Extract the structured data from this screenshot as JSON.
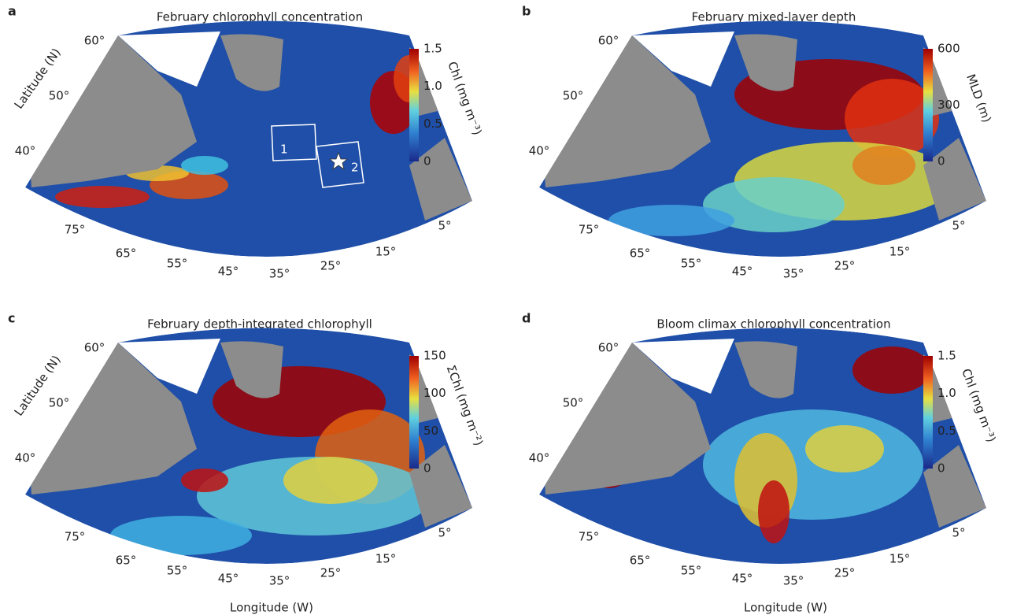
{
  "panels": [
    {
      "letter": "a",
      "title": "February chlorophyll concentration",
      "colorbar": {
        "label": "Chl (mg m⁻³)",
        "ticks": [
          "1.5",
          "1.0",
          "0.5",
          "0"
        ]
      },
      "lat_labels": [
        "60°",
        "50°",
        "40°"
      ],
      "lon_labels": [
        "75°",
        "65°",
        "55°",
        "45°",
        "35°",
        "25°",
        "15°",
        "5°"
      ],
      "y_label": "Latitude (N)",
      "box_labels": [
        "1",
        "2"
      ]
    },
    {
      "letter": "b",
      "title": "February mixed-layer depth",
      "colorbar": {
        "label": "MLD (m)",
        "ticks": [
          "600",
          "300",
          "0"
        ]
      },
      "lat_labels": [
        "60°",
        "50°",
        "40°"
      ],
      "lon_labels": [
        "75°",
        "65°",
        "55°",
        "45°",
        "35°",
        "25°",
        "15°",
        "5°"
      ]
    },
    {
      "letter": "c",
      "title": "February depth-integrated chlorophyll",
      "colorbar": {
        "label": "ΣChl (mg m⁻²)",
        "ticks": [
          "150",
          "100",
          "50",
          "0"
        ]
      },
      "lat_labels": [
        "60°",
        "50°",
        "40°"
      ],
      "lon_labels": [
        "75°",
        "65°",
        "55°",
        "45°",
        "35°",
        "25°",
        "15°",
        "5°"
      ],
      "y_label": "Latitude (N)",
      "x_label": "Longitude (W)"
    },
    {
      "letter": "d",
      "title": "Bloom climax chlorophyll concentration",
      "colorbar": {
        "label": "Chl (mg m⁻³)",
        "ticks": [
          "1.5",
          "1.0",
          "0.5",
          "0"
        ]
      },
      "lat_labels": [
        "60°",
        "50°",
        "40°"
      ],
      "lon_labels": [
        "75°",
        "65°",
        "55°",
        "45°",
        "35°",
        "25°",
        "15°",
        "5°"
      ],
      "x_label": "Longitude (W)"
    }
  ]
}
